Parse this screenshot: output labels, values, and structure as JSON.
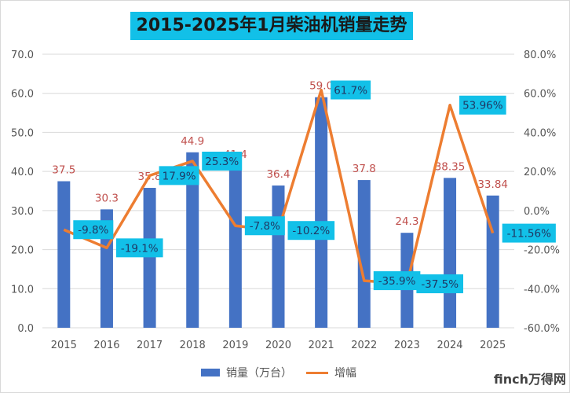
{
  "chart_data": {
    "type": "bar+line",
    "title": "2015-2025年1月柴油机销量走势",
    "categories": [
      "2015",
      "2016",
      "2017",
      "2018",
      "2019",
      "2020",
      "2021",
      "2022",
      "2023",
      "2024",
      "2025"
    ],
    "series": [
      {
        "name": "销量（万台）",
        "type": "bar",
        "axis": "left",
        "color": "#4472c4",
        "values": [
          37.5,
          30.3,
          35.8,
          44.9,
          41.4,
          36.4,
          59.0,
          37.8,
          24.3,
          38.35,
          33.84
        ],
        "labels": [
          "37.5",
          "30.3",
          "35.8",
          "44.9",
          "41.4",
          "36.4",
          "59.0",
          "37.8",
          "24.3",
          "38.35",
          "33.84"
        ]
      },
      {
        "name": "增幅",
        "type": "line",
        "axis": "right",
        "color": "#ed7d31",
        "values": [
          -9.8,
          -19.1,
          17.9,
          25.3,
          -7.8,
          -10.2,
          61.7,
          -35.9,
          -37.5,
          53.96,
          -11.56
        ],
        "labels": [
          "-9.8%",
          "-19.1%",
          "17.9%",
          "25.3%",
          "-7.8%",
          "-10.2%",
          "61.7%",
          "-35.9%",
          "-37.5%",
          "53.96%",
          "-11.56%"
        ]
      }
    ],
    "y_left": {
      "range": [
        0,
        70
      ],
      "ticks": [
        "0.0",
        "10.0",
        "20.0",
        "30.0",
        "40.0",
        "50.0",
        "60.0",
        "70.0"
      ]
    },
    "y_right": {
      "range": [
        -60,
        80
      ],
      "ticks": [
        "-60.0%",
        "-40.0%",
        "-20.0%",
        "0.0%",
        "20.0%",
        "40.0%",
        "60.0%",
        "80.0%"
      ]
    },
    "grid": true,
    "legend_placement": "bottom",
    "label_box_color": "#12c0e8"
  },
  "watermark": "finch万得网"
}
